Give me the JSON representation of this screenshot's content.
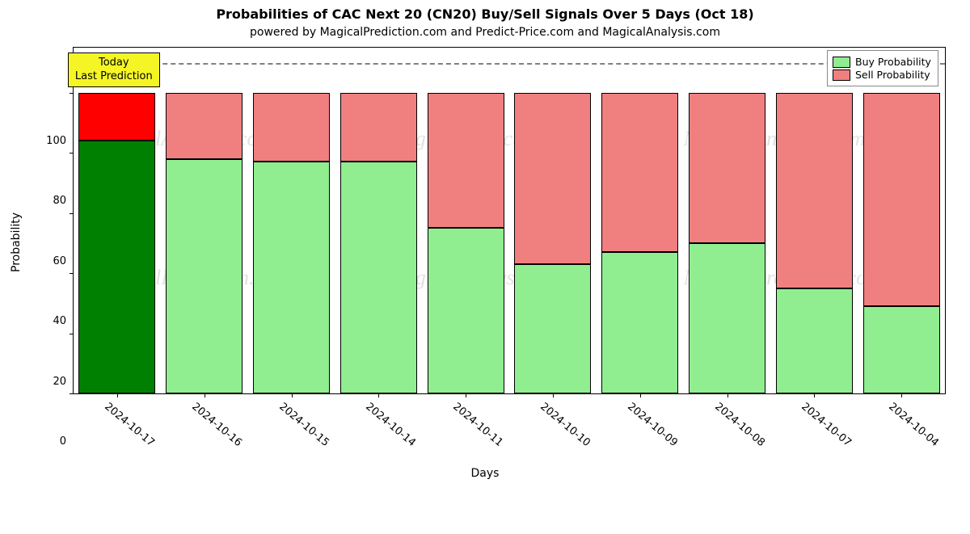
{
  "title": "Probabilities of CAC Next 20 (CN20) Buy/Sell Signals Over 5 Days (Oct 18)",
  "subtitle": "powered by MagicalPrediction.com and Predict-Price.com and MagicalAnalysis.com",
  "ylabel": "Probability",
  "xlabel": "Days",
  "today_box": {
    "line1": "Today",
    "line2": "Last Prediction",
    "bg_color": "#f5f526",
    "border_color": "#000000"
  },
  "legend": {
    "buy": "Buy Probability",
    "sell": "Sell Probability"
  },
  "colors": {
    "buy_normal": "#90ee90",
    "sell_normal": "#f08080",
    "buy_today": "#008000",
    "sell_today": "#ff0000",
    "bar_border": "#000000",
    "plot_border": "#000000",
    "background": "#ffffff",
    "hline": "#808080",
    "watermark": "rgba(120,120,120,0.22)"
  },
  "yaxis": {
    "min": 0,
    "max": 115,
    "ticks": [
      0,
      20,
      40,
      60,
      80,
      100
    ],
    "hline_at": 110
  },
  "bars": {
    "count": 10,
    "bar_width_frac": 0.88,
    "categories": [
      "2024-10-17",
      "2024-10-16",
      "2024-10-15",
      "2024-10-14",
      "2024-10-11",
      "2024-10-10",
      "2024-10-09",
      "2024-10-08",
      "2024-10-07",
      "2024-10-04"
    ],
    "buy": [
      84,
      78,
      77,
      77,
      55,
      43,
      47,
      50,
      35,
      29
    ],
    "sell": [
      16,
      22,
      23,
      23,
      45,
      57,
      53,
      50,
      65,
      71
    ],
    "today_index": 0
  },
  "watermark_text": "MagicalAnalysis.com | MagicalPrediction.com",
  "title_fontsize": 16,
  "subtitle_fontsize": 14,
  "axis_label_fontsize": 14,
  "tick_fontsize": 13,
  "legend_fontsize": 12.5,
  "watermark_fontsize": 26,
  "xtick_rotation_deg": 40
}
